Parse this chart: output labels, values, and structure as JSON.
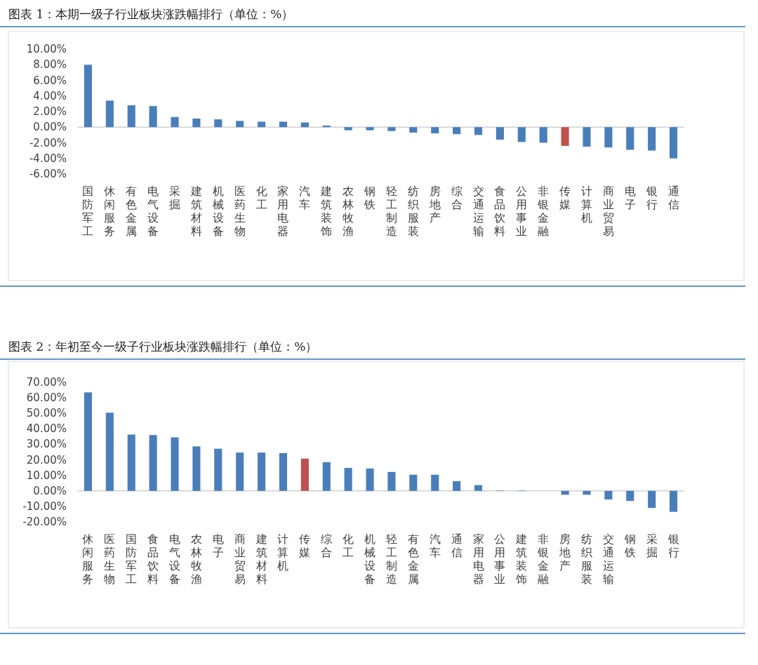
{
  "chart_data": [
    {
      "type": "bar",
      "title": "图表 1：本期一级子行业板块涨跌幅排行（单位：%）",
      "categories": [
        "国防军工",
        "休闲服务",
        "有色金属",
        "电气设备",
        "采掘",
        "建筑材料",
        "机械设备",
        "医药生物",
        "化工",
        "家用电器",
        "汽车",
        "建筑装饰",
        "农林牧渔",
        "钢铁",
        "轻工制造",
        "纺织服装",
        "房地产",
        "综合",
        "交通运输",
        "食品饮料",
        "公用事业",
        "非银金融",
        "传媒",
        "计算机",
        "商业贸易",
        "电子",
        "银行",
        "通信"
      ],
      "values": [
        8.0,
        3.4,
        2.8,
        2.7,
        1.3,
        1.1,
        1.0,
        0.8,
        0.7,
        0.7,
        0.6,
        0.2,
        -0.4,
        -0.4,
        -0.5,
        -0.7,
        -0.8,
        -0.9,
        -1.0,
        -1.6,
        -1.9,
        -2.0,
        -2.4,
        -2.5,
        -2.6,
        -2.9,
        -3.0,
        -4.0
      ],
      "colors": [
        "#4a7ebb",
        "#4a7ebb",
        "#4a7ebb",
        "#4a7ebb",
        "#4a7ebb",
        "#4a7ebb",
        "#4a7ebb",
        "#4a7ebb",
        "#4a7ebb",
        "#4a7ebb",
        "#4a7ebb",
        "#4a7ebb",
        "#4a7ebb",
        "#4a7ebb",
        "#4a7ebb",
        "#4a7ebb",
        "#4a7ebb",
        "#4a7ebb",
        "#4a7ebb",
        "#4a7ebb",
        "#4a7ebb",
        "#4a7ebb",
        "#c0504d",
        "#4a7ebb",
        "#4a7ebb",
        "#4a7ebb",
        "#4a7ebb",
        "#4a7ebb"
      ],
      "ylim": [
        -6,
        10
      ],
      "yticks": [
        {
          "value": -6,
          "label": "-6.00%"
        },
        {
          "value": -4,
          "label": "-4.00%"
        },
        {
          "value": -2,
          "label": "-2.00%"
        },
        {
          "value": 0,
          "label": "0.00%"
        },
        {
          "value": 2,
          "label": "2.00%"
        },
        {
          "value": 4,
          "label": "4.00%"
        },
        {
          "value": 6,
          "label": "6.00%"
        },
        {
          "value": 8,
          "label": "8.00%"
        },
        {
          "value": 10,
          "label": "10.00%"
        }
      ]
    },
    {
      "type": "bar",
      "title": "图表 2：年初至今一级子行业板块涨跌幅排行（单位：%）",
      "categories": [
        "休闲服务",
        "医药生物",
        "国防军工",
        "食品饮料",
        "电气设备",
        "农林牧渔",
        "电子",
        "商业贸易",
        "建筑材料",
        "计算机",
        "传媒",
        "综合",
        "化工",
        "机械设备",
        "轻工制造",
        "有色金属",
        "汽车",
        "通信",
        "家用电器",
        "公用事业",
        "建筑装饰",
        "非银金融",
        "房地产",
        "纺织服装",
        "交通运输",
        "钢铁",
        "采掘",
        "银行"
      ],
      "values": [
        63.5,
        50.4,
        36.3,
        36.0,
        34.5,
        28.7,
        27.2,
        24.7,
        24.7,
        24.4,
        20.8,
        18.5,
        14.8,
        14.4,
        12.2,
        10.4,
        10.4,
        6.3,
        3.7,
        0.3,
        0.2,
        null,
        -2.5,
        -2.5,
        -5.5,
        -6.5,
        -11,
        -13.5
      ],
      "colors": [
        "#4a7ebb",
        "#4a7ebb",
        "#4a7ebb",
        "#4a7ebb",
        "#4a7ebb",
        "#4a7ebb",
        "#4a7ebb",
        "#4a7ebb",
        "#4a7ebb",
        "#4a7ebb",
        "#c0504d",
        "#4a7ebb",
        "#4a7ebb",
        "#4a7ebb",
        "#4a7ebb",
        "#4a7ebb",
        "#4a7ebb",
        "#4a7ebb",
        "#4a7ebb",
        "#4a7ebb",
        "#4a7ebb",
        null,
        "#4a7ebb",
        "#4a7ebb",
        "#4a7ebb",
        "#4a7ebb",
        "#4a7ebb",
        "#4a7ebb"
      ],
      "ylim": [
        -20,
        70
      ],
      "yticks": [
        {
          "value": -20,
          "label": "-20.00%"
        },
        {
          "value": -10,
          "label": "-10.00%"
        },
        {
          "value": 0,
          "label": "0.00%"
        },
        {
          "value": 10,
          "label": "10.00%"
        },
        {
          "value": 20,
          "label": "20.00%"
        },
        {
          "value": 30,
          "label": "30.00%"
        },
        {
          "value": 40,
          "label": "40.00%"
        },
        {
          "value": 50,
          "label": "50.00%"
        },
        {
          "value": 60,
          "label": "60.00%"
        },
        {
          "value": 70,
          "label": "70.00%"
        }
      ]
    }
  ]
}
